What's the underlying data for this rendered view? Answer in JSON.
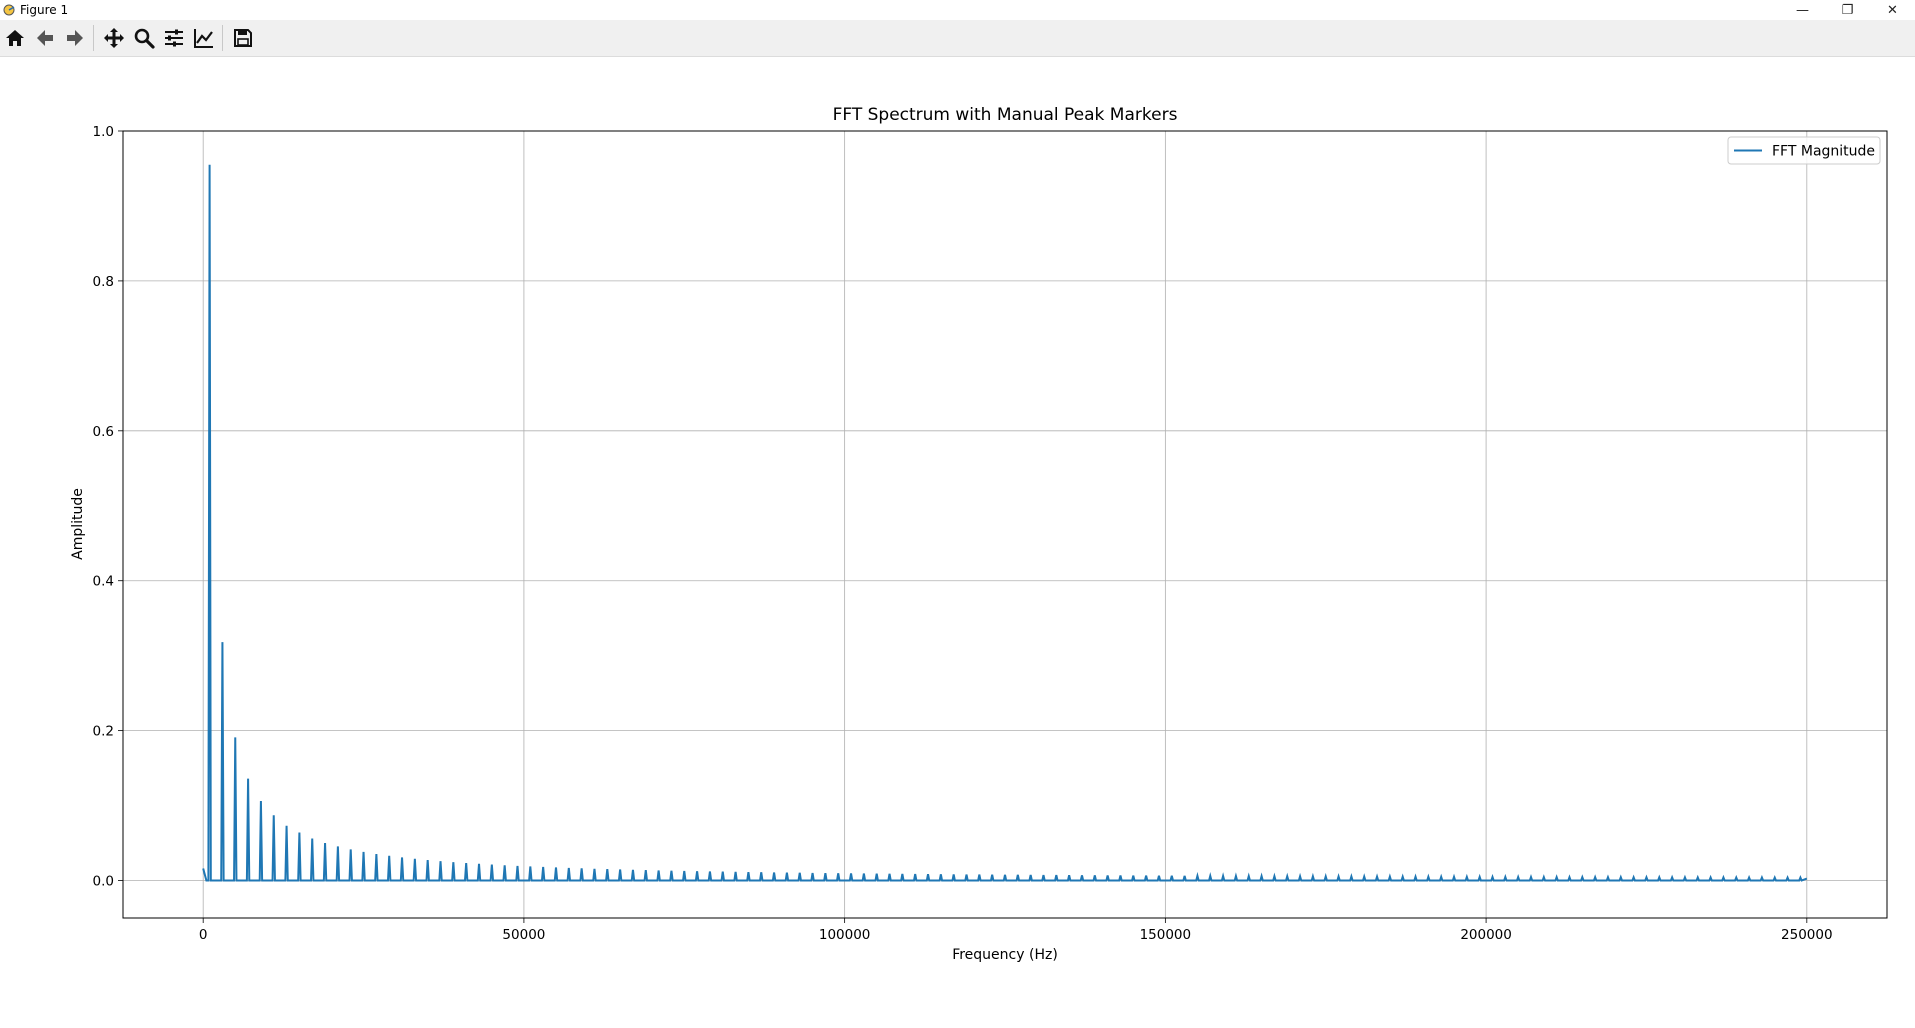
{
  "window": {
    "title": "Figure 1",
    "controls": {
      "minimize": "—",
      "restore": "❐",
      "close": "✕"
    }
  },
  "toolbar": {
    "buttons": [
      {
        "name": "home-icon",
        "tooltip": "Reset original view"
      },
      {
        "name": "back-arrow-icon",
        "tooltip": "Back to previous view"
      },
      {
        "name": "forward-arrow-icon",
        "tooltip": "Forward to next view"
      },
      {
        "name": "pan-icon",
        "tooltip": "Pan axes"
      },
      {
        "name": "zoom-icon",
        "tooltip": "Zoom to rectangle"
      },
      {
        "name": "subplots-icon",
        "tooltip": "Configure subplots"
      },
      {
        "name": "edit-axes-icon",
        "tooltip": "Edit axis, curve and image parameters"
      },
      {
        "name": "save-icon",
        "tooltip": "Save the figure"
      }
    ]
  },
  "chart_data": {
    "type": "line",
    "title": "FFT Spectrum with Manual Peak Markers",
    "xlabel": "Frequency (Hz)",
    "ylabel": "Amplitude",
    "xlim": [
      -12500,
      262500
    ],
    "ylim": [
      -0.05,
      1.0
    ],
    "xticks": [
      0,
      50000,
      100000,
      150000,
      200000,
      250000
    ],
    "xtick_labels": [
      "0",
      "50000",
      "100000",
      "150000",
      "200000",
      "250000"
    ],
    "yticks": [
      0.0,
      0.2,
      0.4,
      0.6,
      0.8,
      1.0
    ],
    "ytick_labels": [
      "0.0",
      "0.2",
      "0.4",
      "0.6",
      "0.8",
      "1.0"
    ],
    "grid": true,
    "legend_position": "upper right",
    "color": "#1f77b4",
    "series": [
      {
        "name": "FFT Magnitude",
        "fundamental_hz": 1000,
        "harmonic_spacing_hz": 2000,
        "max_freq_hz": 250000,
        "dc_amplitude": 0.016,
        "peak_amplitude_rule": "0.955 / n for odd harmonic n",
        "peaks": [
          {
            "freq": 1000,
            "amp": 0.955
          },
          {
            "freq": 3000,
            "amp": 0.318
          },
          {
            "freq": 5000,
            "amp": 0.191
          },
          {
            "freq": 7000,
            "amp": 0.136
          },
          {
            "freq": 9000,
            "amp": 0.106
          },
          {
            "freq": 11000,
            "amp": 0.087
          },
          {
            "freq": 13000,
            "amp": 0.073
          },
          {
            "freq": 15000,
            "amp": 0.064
          },
          {
            "freq": 17000,
            "amp": 0.056
          },
          {
            "freq": 19000,
            "amp": 0.05
          }
        ]
      }
    ]
  }
}
